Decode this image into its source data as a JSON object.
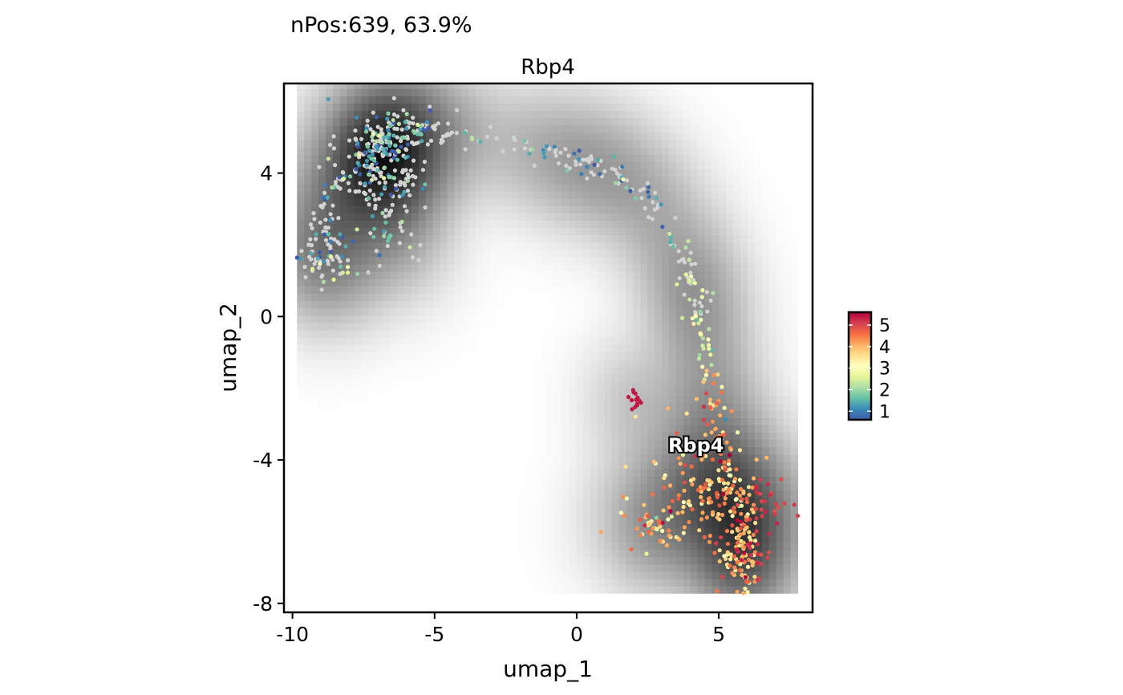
{
  "chart_data": {
    "type": "scatter",
    "title": "nPos:639, 63.9%",
    "subtitle": "Rbp4",
    "xlabel": "umap_1",
    "ylabel": "umap_2",
    "xlim": [
      -10.3,
      8.3
    ],
    "ylim": [
      -8.25,
      6.5
    ],
    "x_ticks": [
      -10,
      -5,
      0,
      5
    ],
    "x_tick_labels": [
      "-10",
      "-5",
      "0",
      "5"
    ],
    "y_ticks": [
      -8,
      -4,
      0,
      4
    ],
    "y_tick_labels": [
      "-8",
      "-4",
      "0",
      "4"
    ],
    "grid": false,
    "background": "grayscale density of all cells (white = low, black = high)",
    "feature_label": {
      "text": "Rbp4",
      "x": 4.2,
      "y": -3.6
    },
    "colorbar": {
      "placement": "right",
      "min": 0.6,
      "max": 5.6,
      "ticks": [
        1,
        2,
        3,
        4,
        5
      ],
      "tick_labels": [
        "1",
        "2",
        "3",
        "4",
        "5"
      ],
      "colors": [
        "#3f5aa8",
        "#3a8bbb",
        "#66c2a5",
        "#abdda4",
        "#e6f598",
        "#ffffbf",
        "#fee08b",
        "#fdae61",
        "#f46d43",
        "#d53e4f",
        "#b0003a"
      ]
    },
    "negative_color": "#d3d3d3",
    "n_cells": 1000,
    "n_positive": 639,
    "population_path": [
      [
        -9.2,
        1.2
      ],
      [
        -9.2,
        2.4
      ],
      [
        -8.7,
        3.3
      ],
      [
        -8.2,
        3.9
      ],
      [
        -7.3,
        4.5
      ],
      [
        -6.8,
        4.9
      ],
      [
        -6.2,
        5.1
      ],
      [
        -5.0,
        5.2
      ],
      [
        -3.5,
        5.0
      ],
      [
        -1.5,
        4.7
      ],
      [
        0.0,
        4.4
      ],
      [
        1.2,
        4.0
      ],
      [
        2.3,
        3.5
      ],
      [
        3.0,
        2.6
      ],
      [
        3.6,
        1.7
      ],
      [
        4.1,
        0.8
      ],
      [
        4.5,
        -0.3
      ],
      [
        4.6,
        -1.5
      ],
      [
        4.8,
        -2.6
      ],
      [
        5.0,
        -3.6
      ],
      [
        5.3,
        -4.5
      ],
      [
        5.7,
        -5.3
      ],
      [
        5.9,
        -6.2
      ],
      [
        6.0,
        -7.0
      ]
    ],
    "dense_regions": [
      {
        "x": -6.8,
        "y": 4.5,
        "sx": 0.8,
        "sy": 0.8,
        "n": 190
      },
      {
        "x": -8.6,
        "y": 1.6,
        "sx": 0.5,
        "sy": 0.4,
        "n": 50
      },
      {
        "x": -6.6,
        "y": 2.6,
        "sx": 0.5,
        "sy": 0.6,
        "n": 40
      },
      {
        "x": 4.4,
        "y": -4.8,
        "sx": 1.1,
        "sy": 0.8,
        "n": 120
      },
      {
        "x": 5.8,
        "y": -6.6,
        "sx": 0.55,
        "sy": 0.6,
        "n": 100
      },
      {
        "x": 6.6,
        "y": -5.2,
        "sx": 0.4,
        "sy": 0.4,
        "n": 30
      },
      {
        "x": 2.6,
        "y": -6.0,
        "sx": 0.6,
        "sy": 0.3,
        "n": 30
      },
      {
        "x": 2.1,
        "y": -2.3,
        "sx": 0.15,
        "sy": 0.15,
        "n": 14
      }
    ]
  }
}
